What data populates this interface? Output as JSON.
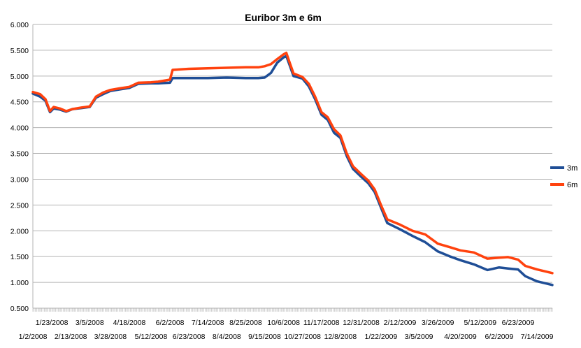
{
  "chart_data": {
    "type": "line",
    "title": "Euribor 3m e 6m",
    "xlabel": "",
    "ylabel": "",
    "ylim": [
      0.5,
      6.0
    ],
    "y_ticks": [
      "0.500",
      "1.000",
      "1.500",
      "2.000",
      "2.500",
      "3.000",
      "3.500",
      "4.000",
      "4.500",
      "5.000",
      "5.500",
      "6.000"
    ],
    "x_range": [
      "1/2/2008",
      "7/31/2009"
    ],
    "x_tick_labels_upper": [
      "1/23/2008",
      "3/5/2008",
      "4/18/2008",
      "6/2/2008",
      "7/14/2008",
      "8/25/2008",
      "10/6/2008",
      "11/17/2008",
      "12/31/2008",
      "2/12/2009",
      "3/26/2009",
      "5/12/2009",
      "6/23/2009"
    ],
    "x_tick_labels_lower": [
      "1/2/2008",
      "2/13/2008",
      "3/28/2008",
      "5/12/2008",
      "6/23/2008",
      "8/4/2008",
      "9/15/2008",
      "10/27/2008",
      "12/8/2008",
      "1/22/2009",
      "3/5/2009",
      "4/20/2009",
      "6/2/2009",
      "7/14/2009"
    ],
    "grid": true,
    "legend_position": "right",
    "series": [
      {
        "name": "3m",
        "color": "#1f4e96",
        "points": [
          [
            "1/2/2008",
            4.66
          ],
          [
            "1/10/2008",
            4.6
          ],
          [
            "1/16/2008",
            4.52
          ],
          [
            "1/21/2008",
            4.3
          ],
          [
            "1/25/2008",
            4.37
          ],
          [
            "2/1/2008",
            4.35
          ],
          [
            "2/8/2008",
            4.31
          ],
          [
            "2/15/2008",
            4.36
          ],
          [
            "2/25/2008",
            4.38
          ],
          [
            "3/5/2008",
            4.4
          ],
          [
            "3/12/2008",
            4.58
          ],
          [
            "3/20/2008",
            4.65
          ],
          [
            "3/28/2008",
            4.71
          ],
          [
            "4/7/2008",
            4.74
          ],
          [
            "4/18/2008",
            4.77
          ],
          [
            "4/28/2008",
            4.85
          ],
          [
            "5/12/2008",
            4.86
          ],
          [
            "5/20/2008",
            4.86
          ],
          [
            "6/2/2008",
            4.87
          ],
          [
            "6/5/2008",
            4.96
          ],
          [
            "6/23/2008",
            4.96
          ],
          [
            "7/14/2008",
            4.96
          ],
          [
            "8/4/2008",
            4.97
          ],
          [
            "8/25/2008",
            4.96
          ],
          [
            "9/8/2008",
            4.96
          ],
          [
            "9/15/2008",
            4.97
          ],
          [
            "9/22/2008",
            5.06
          ],
          [
            "9/29/2008",
            5.26
          ],
          [
            "10/6/2008",
            5.36
          ],
          [
            "10/9/2008",
            5.39
          ],
          [
            "10/13/2008",
            5.2
          ],
          [
            "10/17/2008",
            5.0
          ],
          [
            "10/27/2008",
            4.95
          ],
          [
            "11/3/2008",
            4.8
          ],
          [
            "11/10/2008",
            4.55
          ],
          [
            "11/17/2008",
            4.25
          ],
          [
            "11/24/2008",
            4.15
          ],
          [
            "12/1/2008",
            3.9
          ],
          [
            "12/8/2008",
            3.8
          ],
          [
            "12/15/2008",
            3.45
          ],
          [
            "12/22/2008",
            3.2
          ],
          [
            "12/31/2008",
            3.05
          ],
          [
            "1/8/2009",
            2.92
          ],
          [
            "1/15/2009",
            2.75
          ],
          [
            "1/22/2009",
            2.45
          ],
          [
            "1/29/2009",
            2.15
          ],
          [
            "2/12/2009",
            2.03
          ],
          [
            "2/26/2009",
            1.9
          ],
          [
            "3/12/2009",
            1.78
          ],
          [
            "3/26/2009",
            1.6
          ],
          [
            "4/9/2009",
            1.5
          ],
          [
            "4/20/2009",
            1.43
          ],
          [
            "5/5/2009",
            1.35
          ],
          [
            "5/20/2009",
            1.24
          ],
          [
            "6/2/2009",
            1.29
          ],
          [
            "6/12/2009",
            1.27
          ],
          [
            "6/23/2009",
            1.25
          ],
          [
            "7/1/2009",
            1.12
          ],
          [
            "7/14/2009",
            1.02
          ],
          [
            "7/31/2009",
            0.95
          ]
        ]
      },
      {
        "name": "6m",
        "color": "#ff420e",
        "points": [
          [
            "1/2/2008",
            4.69
          ],
          [
            "1/10/2008",
            4.65
          ],
          [
            "1/16/2008",
            4.55
          ],
          [
            "1/21/2008",
            4.32
          ],
          [
            "1/25/2008",
            4.4
          ],
          [
            "2/1/2008",
            4.37
          ],
          [
            "2/8/2008",
            4.32
          ],
          [
            "2/15/2008",
            4.36
          ],
          [
            "2/25/2008",
            4.39
          ],
          [
            "3/5/2008",
            4.41
          ],
          [
            "3/12/2008",
            4.6
          ],
          [
            "3/20/2008",
            4.68
          ],
          [
            "3/28/2008",
            4.73
          ],
          [
            "4/7/2008",
            4.76
          ],
          [
            "4/18/2008",
            4.79
          ],
          [
            "4/28/2008",
            4.87
          ],
          [
            "5/12/2008",
            4.88
          ],
          [
            "5/20/2008",
            4.89
          ],
          [
            "6/2/2008",
            4.93
          ],
          [
            "6/5/2008",
            5.12
          ],
          [
            "6/23/2008",
            5.14
          ],
          [
            "7/14/2008",
            5.15
          ],
          [
            "8/4/2008",
            5.16
          ],
          [
            "8/25/2008",
            5.17
          ],
          [
            "9/8/2008",
            5.17
          ],
          [
            "9/15/2008",
            5.19
          ],
          [
            "9/22/2008",
            5.23
          ],
          [
            "9/29/2008",
            5.33
          ],
          [
            "10/6/2008",
            5.42
          ],
          [
            "10/9/2008",
            5.45
          ],
          [
            "10/13/2008",
            5.25
          ],
          [
            "10/17/2008",
            5.05
          ],
          [
            "10/27/2008",
            4.98
          ],
          [
            "11/3/2008",
            4.85
          ],
          [
            "11/10/2008",
            4.6
          ],
          [
            "11/17/2008",
            4.3
          ],
          [
            "11/24/2008",
            4.2
          ],
          [
            "12/1/2008",
            3.97
          ],
          [
            "12/8/2008",
            3.85
          ],
          [
            "12/15/2008",
            3.5
          ],
          [
            "12/22/2008",
            3.25
          ],
          [
            "12/31/2008",
            3.1
          ],
          [
            "1/8/2009",
            2.97
          ],
          [
            "1/15/2009",
            2.8
          ],
          [
            "1/22/2009",
            2.5
          ],
          [
            "1/29/2009",
            2.22
          ],
          [
            "2/12/2009",
            2.12
          ],
          [
            "2/26/2009",
            2.0
          ],
          [
            "3/12/2009",
            1.93
          ],
          [
            "3/26/2009",
            1.75
          ],
          [
            "4/9/2009",
            1.68
          ],
          [
            "4/20/2009",
            1.62
          ],
          [
            "5/5/2009",
            1.58
          ],
          [
            "5/20/2009",
            1.46
          ],
          [
            "6/2/2009",
            1.48
          ],
          [
            "6/12/2009",
            1.49
          ],
          [
            "6/23/2009",
            1.44
          ],
          [
            "7/1/2009",
            1.32
          ],
          [
            "7/14/2009",
            1.25
          ],
          [
            "7/31/2009",
            1.18
          ]
        ]
      }
    ]
  }
}
